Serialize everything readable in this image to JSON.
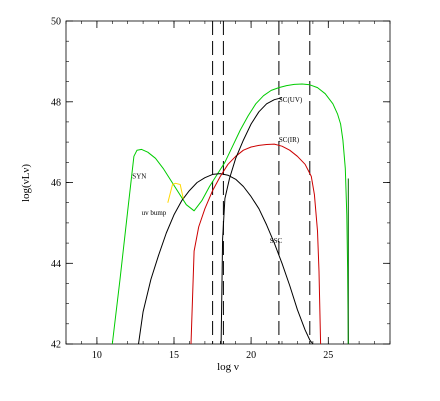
{
  "chart_data": {
    "type": "line",
    "title": "",
    "xlabel": "log ν",
    "ylabel": "log(νLν)",
    "xlim": [
      8,
      29
    ],
    "ylim": [
      42,
      50
    ],
    "xticks": [
      10,
      15,
      20,
      25
    ],
    "yticks": [
      42,
      44,
      46,
      48,
      50
    ],
    "minor_ticks": true,
    "grid": false,
    "legend": "none",
    "vertical_lines": [
      17.5,
      18.2,
      21.8,
      23.8
    ],
    "annotations": [
      {
        "text": "SYN",
        "x": 12.3,
        "y": 46.1
      },
      {
        "text": "uv bump",
        "x": 12.9,
        "y": 45.2
      },
      {
        "text": "SSC",
        "x": 21.2,
        "y": 44.5
      },
      {
        "text": "SC(IR)",
        "x": 21.8,
        "y": 47.0
      },
      {
        "text": "SC(UV)",
        "x": 21.8,
        "y": 48.0
      }
    ],
    "series": [
      {
        "color": "#00cc00",
        "x": [
          11.0,
          11.5,
          12.0,
          12.4,
          12.6,
          12.9,
          13.3,
          13.8,
          14.3,
          14.8,
          15.3,
          15.8,
          16.3,
          16.8,
          17.3,
          17.8,
          18.3,
          18.8,
          19.3,
          19.8,
          20.3,
          20.8,
          21.3,
          21.8,
          22.3,
          22.8,
          23.3,
          23.8,
          24.3,
          24.8,
          25.3,
          25.6,
          25.8,
          25.95,
          26.1,
          26.2,
          26.25,
          26.3
        ],
        "y": [
          42.0,
          43.6,
          45.3,
          46.65,
          46.8,
          46.82,
          46.75,
          46.6,
          46.35,
          46.05,
          45.75,
          45.45,
          45.3,
          45.55,
          45.9,
          46.2,
          46.5,
          46.9,
          47.3,
          47.65,
          47.95,
          48.15,
          48.28,
          48.35,
          48.4,
          48.43,
          48.44,
          48.42,
          48.35,
          48.2,
          47.95,
          47.7,
          47.45,
          47.05,
          46.35,
          45.2,
          43.9,
          42.0
        ]
      },
      {
        "color": "#000000",
        "x": [
          12.7,
          13.0,
          13.5,
          14.0,
          14.5,
          15.0,
          15.5,
          16.0,
          16.5,
          17.0,
          17.5,
          18.0,
          18.5,
          19.0,
          19.5,
          20.0,
          20.5,
          21.0,
          21.5,
          22.0,
          22.5,
          23.0,
          23.5,
          23.8,
          24.0
        ],
        "y": [
          42.0,
          42.8,
          43.6,
          44.2,
          44.75,
          45.2,
          45.55,
          45.8,
          46.0,
          46.12,
          46.2,
          46.22,
          46.18,
          46.08,
          45.9,
          45.65,
          45.35,
          44.95,
          44.5,
          44.0,
          43.45,
          42.85,
          42.35,
          42.1,
          42.0
        ]
      },
      {
        "color": "#cc0000",
        "x": [
          16.1,
          16.3,
          16.6,
          17.0,
          17.5,
          18.0,
          18.5,
          19.0,
          19.5,
          20.0,
          20.5,
          21.0,
          21.5,
          22.0,
          22.5,
          23.0,
          23.5,
          23.9,
          24.1,
          24.3,
          24.4,
          24.5
        ],
        "y": [
          42.0,
          44.3,
          44.9,
          45.35,
          45.8,
          46.15,
          46.45,
          46.65,
          46.8,
          46.88,
          46.92,
          46.94,
          46.95,
          46.9,
          46.8,
          46.65,
          46.45,
          46.15,
          45.7,
          44.8,
          43.8,
          42.0
        ]
      },
      {
        "color": "#000000",
        "x": [
          18.05,
          18.15,
          18.3,
          18.6,
          19.0,
          19.5,
          20.0,
          20.5,
          21.0,
          21.5,
          22.0
        ],
        "y": [
          42.0,
          44.6,
          45.6,
          46.1,
          46.6,
          47.05,
          47.45,
          47.75,
          47.95,
          48.05,
          48.1
        ]
      },
      {
        "color": "#ffd700",
        "x": [
          14.6,
          14.9,
          15.1,
          15.4,
          15.6
        ],
        "y": [
          45.5,
          45.95,
          45.98,
          45.95,
          45.6
        ]
      },
      {
        "color": "#006400",
        "x": [
          26.3,
          26.3
        ],
        "y": [
          42.0,
          46.1
        ]
      }
    ]
  }
}
